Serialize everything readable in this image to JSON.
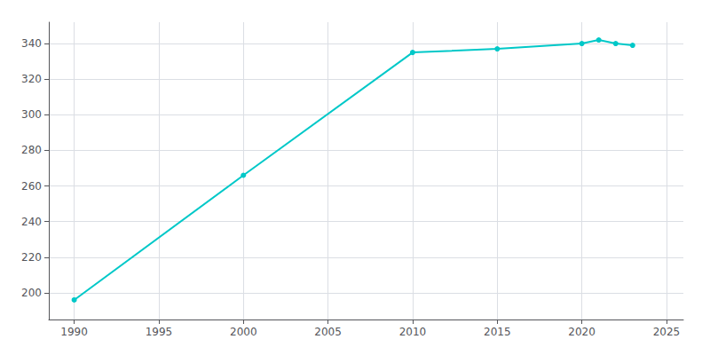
{
  "chart_data": {
    "type": "line",
    "x": [
      1990,
      2000,
      2010,
      2015,
      2020,
      2021,
      2022,
      2023
    ],
    "values": [
      196,
      266,
      335,
      337,
      340,
      342,
      340,
      339
    ],
    "color": "#00C8C8",
    "marker": "circle",
    "xlim": [
      1988.5,
      2026
    ],
    "ylim": [
      185,
      352
    ],
    "xticks": [
      1990,
      1995,
      2000,
      2005,
      2010,
      2015,
      2020,
      2025
    ],
    "yticks": [
      200,
      220,
      240,
      260,
      280,
      300,
      320,
      340
    ],
    "grid": true
  }
}
